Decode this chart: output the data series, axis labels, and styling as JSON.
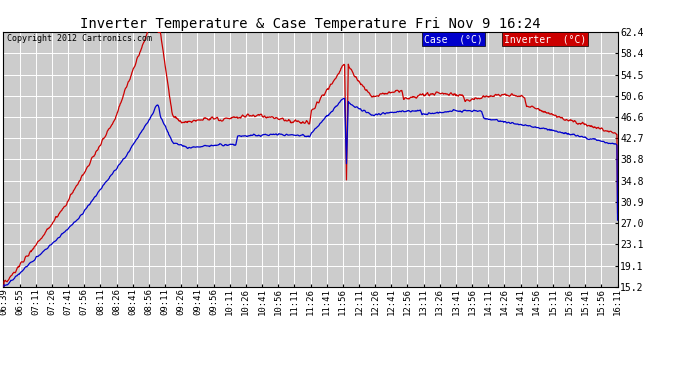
{
  "title": "Inverter Temperature & Case Temperature Fri Nov 9 16:24",
  "copyright": "Copyright 2012 Cartronics.com",
  "legend_case_label": "Case  (°C)",
  "legend_inverter_label": "Inverter  (°C)",
  "legend_case_color": "#0000cc",
  "legend_inverter_color": "#cc0000",
  "background_color": "#ffffff",
  "plot_bg_color": "#cccccc",
  "grid_color": "#ffffff",
  "yticks": [
    15.2,
    19.1,
    23.1,
    27.0,
    30.9,
    34.8,
    38.8,
    42.7,
    46.6,
    50.6,
    54.5,
    58.4,
    62.4
  ],
  "xtick_labels": [
    "06:39",
    "06:55",
    "07:11",
    "07:26",
    "07:41",
    "07:56",
    "08:11",
    "08:26",
    "08:41",
    "08:56",
    "09:11",
    "09:26",
    "09:41",
    "09:56",
    "10:11",
    "10:26",
    "10:41",
    "10:56",
    "11:11",
    "11:26",
    "11:41",
    "11:56",
    "12:11",
    "12:26",
    "12:41",
    "12:56",
    "13:11",
    "13:26",
    "13:41",
    "13:56",
    "14:11",
    "14:26",
    "14:41",
    "14:56",
    "15:11",
    "15:26",
    "15:41",
    "15:56",
    "16:11"
  ]
}
